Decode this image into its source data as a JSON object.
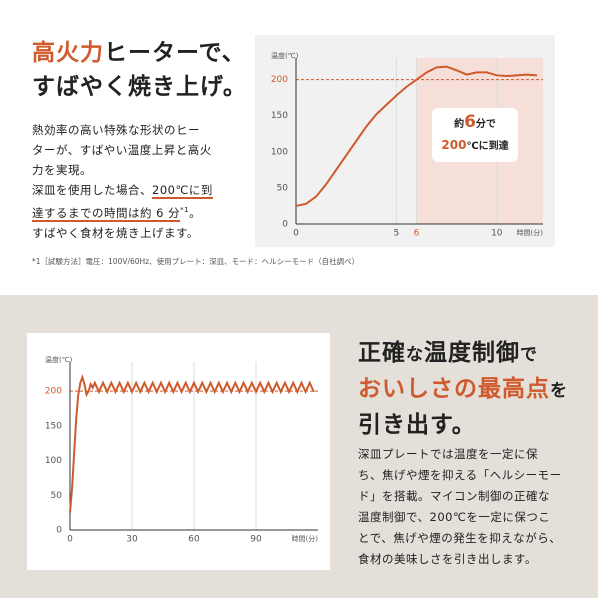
{
  "top": {
    "title_accent": "高火力",
    "title_rest": "ヒーターで、",
    "title_line2": "すばやく焼き上げ。",
    "body_lines": [
      "熱効率の高い特殊な形状のヒー",
      "ターが、すばやい温度上昇と高火",
      "力を実現。"
    ],
    "body_line4_a": "深皿を使用した場合、",
    "body_line4_b": "200℃に到",
    "body_line5_a": "達するまでの時間は約 6 分",
    "body_line5_note": "*1",
    "body_line5_b": "。",
    "body_line6": "すばやく食材を焼き上げます。",
    "footnote": "*1［試験方法］電圧：100V/60Hz、使用プレート：深皿、モード：ヘルシーモード（自社調べ）",
    "callout": {
      "a": "約",
      "b": "6",
      "c": "分で",
      "d": "200",
      "e": "℃に到達"
    }
  },
  "bottom": {
    "title": [
      {
        "text": "正確",
        "accent": false
      },
      {
        "text": "な",
        "accent": false
      },
      {
        "text": "温度制御",
        "accent": false
      },
      {
        "text": "で",
        "accent": false
      }
    ],
    "title_line2_accent": "おいしさの最高点",
    "title_line2_rest": "を",
    "title_line3": "引き出す。",
    "body_lines": [
      "深皿プレートでは温度を一定に保",
      "ち、焦げや煙を抑える「ヘルシーモー",
      "ド」を搭載。マイコン制御の正確な",
      "温度制御で、200℃を一定に保つこ",
      "とで、焦げや煙の発生を抑えながら、",
      "食材の美味しさを引き出します。"
    ]
  },
  "chart_data": [
    {
      "type": "line",
      "y_label": "温度(℃)",
      "x_label": "時間(分)",
      "color": "#cf5a2c",
      "grid": true,
      "x": [
        0,
        0.5,
        1,
        1.5,
        2,
        2.5,
        3,
        3.5,
        4,
        4.5,
        5,
        5.5,
        6,
        6.5,
        7,
        7.5,
        8,
        8.5,
        9,
        9.5,
        10,
        10.5,
        11,
        11.5,
        12
      ],
      "values": [
        25,
        28,
        38,
        55,
        75,
        95,
        115,
        135,
        152,
        165,
        178,
        190,
        200,
        210,
        217,
        218,
        213,
        207,
        210,
        210,
        206,
        205,
        206,
        207,
        206
      ],
      "xlim": [
        0,
        12.3
      ],
      "ylim": [
        0,
        230
      ],
      "xticks": [
        0,
        5,
        6,
        10
      ],
      "yticks": [
        0,
        50,
        100,
        150,
        200
      ],
      "reference_x": 6,
      "reference_y": 200
    },
    {
      "type": "line",
      "y_label": "温度(℃)",
      "x_label": "時間(分)",
      "color": "#cf5a2c",
      "grid": true,
      "x": [
        0,
        1,
        2,
        3,
        4,
        5,
        6,
        7,
        8,
        9,
        10,
        11,
        12,
        14,
        16,
        18,
        20,
        22,
        24,
        26,
        28,
        30,
        32,
        34,
        36,
        38,
        40,
        42,
        44,
        46,
        48,
        50,
        52,
        54,
        56,
        58,
        60,
        62,
        64,
        66,
        68,
        70,
        72,
        74,
        76,
        78,
        80,
        82,
        84,
        86,
        88,
        90,
        92,
        94,
        96,
        98,
        100,
        102,
        104,
        106,
        108,
        110,
        112,
        114,
        116,
        118
      ],
      "values": [
        25,
        60,
        110,
        160,
        195,
        212,
        220,
        210,
        195,
        200,
        210,
        205,
        212,
        199,
        212,
        199,
        212,
        199,
        212,
        199,
        212,
        199,
        212,
        199,
        212,
        199,
        212,
        199,
        212,
        199,
        212,
        199,
        212,
        199,
        212,
        199,
        212,
        199,
        212,
        199,
        212,
        199,
        212,
        199,
        212,
        199,
        212,
        199,
        212,
        199,
        212,
        199,
        212,
        199,
        212,
        199,
        212,
        199,
        212,
        199,
        212,
        199,
        212,
        199,
        212,
        199
      ],
      "xlim": [
        0,
        120
      ],
      "ylim": [
        0,
        242
      ],
      "xticks": [
        0,
        30,
        60,
        90
      ],
      "yticks": [
        0,
        50,
        100,
        150,
        200
      ],
      "reference_y": 200
    }
  ]
}
